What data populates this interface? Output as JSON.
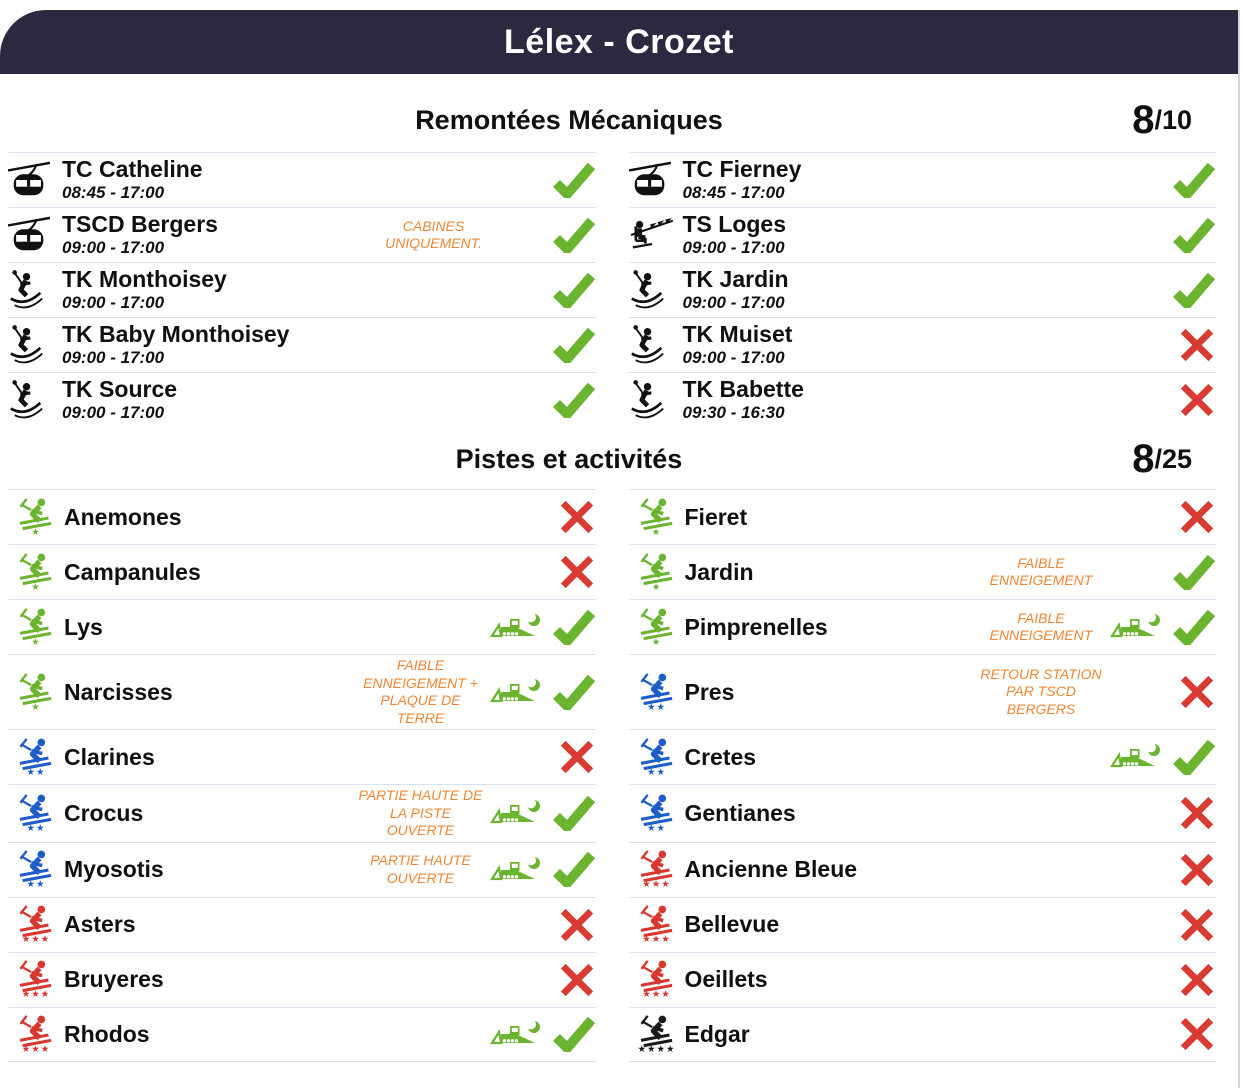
{
  "header": {
    "title": "Lélex - Crozet",
    "bg_color": "#2b2940",
    "text_color": "#ffffff"
  },
  "colors": {
    "open_check": "#6ab42f",
    "closed_x": "#d93a32",
    "note_orange": "#ef8633",
    "divider": "#d9e2ec",
    "lift_icon": "#111111",
    "green_run": "#6ab42f",
    "blue_run": "#1d5dc8",
    "red_run": "#d8372f",
    "black_run": "#1a1a1a"
  },
  "lifts": {
    "title": "Remontées Mécaniques",
    "open_count": "8",
    "total": "/10",
    "left": [
      {
        "icon": "gondola-icon",
        "name": "TC Catheline",
        "hours": "08:45 - 17:00",
        "note": "",
        "status": "open"
      },
      {
        "icon": "gondola-icon",
        "name": "TSCD Bergers",
        "hours": "09:00 - 17:00",
        "note": "CABINES UNIQUEMENT.",
        "status": "open"
      },
      {
        "icon": "draglift-icon",
        "name": "TK Monthoisey",
        "hours": "09:00 - 17:00",
        "note": "",
        "status": "open"
      },
      {
        "icon": "draglift-icon",
        "name": "TK Baby Monthoisey",
        "hours": "09:00 - 17:00",
        "note": "",
        "status": "open"
      },
      {
        "icon": "draglift-icon",
        "name": "TK Source",
        "hours": "09:00 - 17:00",
        "note": "",
        "status": "open"
      }
    ],
    "right": [
      {
        "icon": "gondola-icon",
        "name": "TC Fierney",
        "hours": "08:45 - 17:00",
        "note": "",
        "status": "open"
      },
      {
        "icon": "chairlift-icon",
        "name": "TS Loges",
        "hours": "09:00 - 17:00",
        "note": "",
        "status": "open"
      },
      {
        "icon": "draglift-icon",
        "name": "TK Jardin",
        "hours": "09:00 - 17:00",
        "note": "",
        "status": "open"
      },
      {
        "icon": "draglift-icon",
        "name": "TK Muiset",
        "hours": "09:00 - 17:00",
        "note": "",
        "status": "closed"
      },
      {
        "icon": "draglift-icon",
        "name": "TK Babette",
        "hours": "09:30 - 16:30",
        "note": "",
        "status": "closed"
      }
    ]
  },
  "pistes": {
    "title": "Pistes et activités",
    "open_count": "8",
    "total": "/25",
    "left": [
      {
        "difficulty": "green",
        "stars": 1,
        "name": "Anemones",
        "note": "",
        "groomed": false,
        "status": "closed"
      },
      {
        "difficulty": "green",
        "stars": 1,
        "name": "Campanules",
        "note": "",
        "groomed": false,
        "status": "closed"
      },
      {
        "difficulty": "green",
        "stars": 1,
        "name": "Lys",
        "note": "",
        "groomed": true,
        "status": "open"
      },
      {
        "difficulty": "green",
        "stars": 1,
        "name": "Narcisses",
        "note": "FAIBLE ENNEIGEMENT + PLAQUE DE TERRE",
        "groomed": true,
        "status": "open"
      },
      {
        "difficulty": "blue",
        "stars": 2,
        "name": "Clarines",
        "note": "",
        "groomed": false,
        "status": "closed"
      },
      {
        "difficulty": "blue",
        "stars": 2,
        "name": "Crocus",
        "note": "PARTIE HAUTE DE LA PISTE OUVERTE",
        "groomed": true,
        "status": "open"
      },
      {
        "difficulty": "blue",
        "stars": 2,
        "name": "Myosotis",
        "note": "PARTIE HAUTE OUVERTE",
        "groomed": true,
        "status": "open"
      },
      {
        "difficulty": "red",
        "stars": 3,
        "name": "Asters",
        "note": "",
        "groomed": false,
        "status": "closed"
      },
      {
        "difficulty": "red",
        "stars": 3,
        "name": "Bruyeres",
        "note": "",
        "groomed": false,
        "status": "closed"
      },
      {
        "difficulty": "red",
        "stars": 3,
        "name": "Rhodos",
        "note": "",
        "groomed": true,
        "status": "open"
      }
    ],
    "right": [
      {
        "difficulty": "green",
        "stars": 1,
        "name": "Fieret",
        "note": "",
        "groomed": false,
        "status": "closed"
      },
      {
        "difficulty": "green",
        "stars": 1,
        "name": "Jardin",
        "note": "FAIBLE ENNEIGEMENT",
        "groomed": false,
        "status": "open"
      },
      {
        "difficulty": "green",
        "stars": 1,
        "name": "Pimprenelles",
        "note": "FAIBLE ENNEIGEMENT",
        "groomed": true,
        "status": "open"
      },
      {
        "difficulty": "blue",
        "stars": 2,
        "name": "Pres",
        "note": "RETOUR STATION PAR TSCD BERGERS",
        "groomed": false,
        "status": "closed"
      },
      {
        "difficulty": "blue",
        "stars": 2,
        "name": "Cretes",
        "note": "",
        "groomed": true,
        "status": "open"
      },
      {
        "difficulty": "blue",
        "stars": 2,
        "name": "Gentianes",
        "note": "",
        "groomed": false,
        "status": "closed"
      },
      {
        "difficulty": "red",
        "stars": 3,
        "name": "Ancienne Bleue",
        "note": "",
        "groomed": false,
        "status": "closed"
      },
      {
        "difficulty": "red",
        "stars": 3,
        "name": "Bellevue",
        "note": "",
        "groomed": false,
        "status": "closed"
      },
      {
        "difficulty": "red",
        "stars": 3,
        "name": "Oeillets",
        "note": "",
        "groomed": false,
        "status": "closed"
      },
      {
        "difficulty": "black",
        "stars": 4,
        "name": "Edgar",
        "note": "",
        "groomed": false,
        "status": "closed"
      }
    ]
  }
}
